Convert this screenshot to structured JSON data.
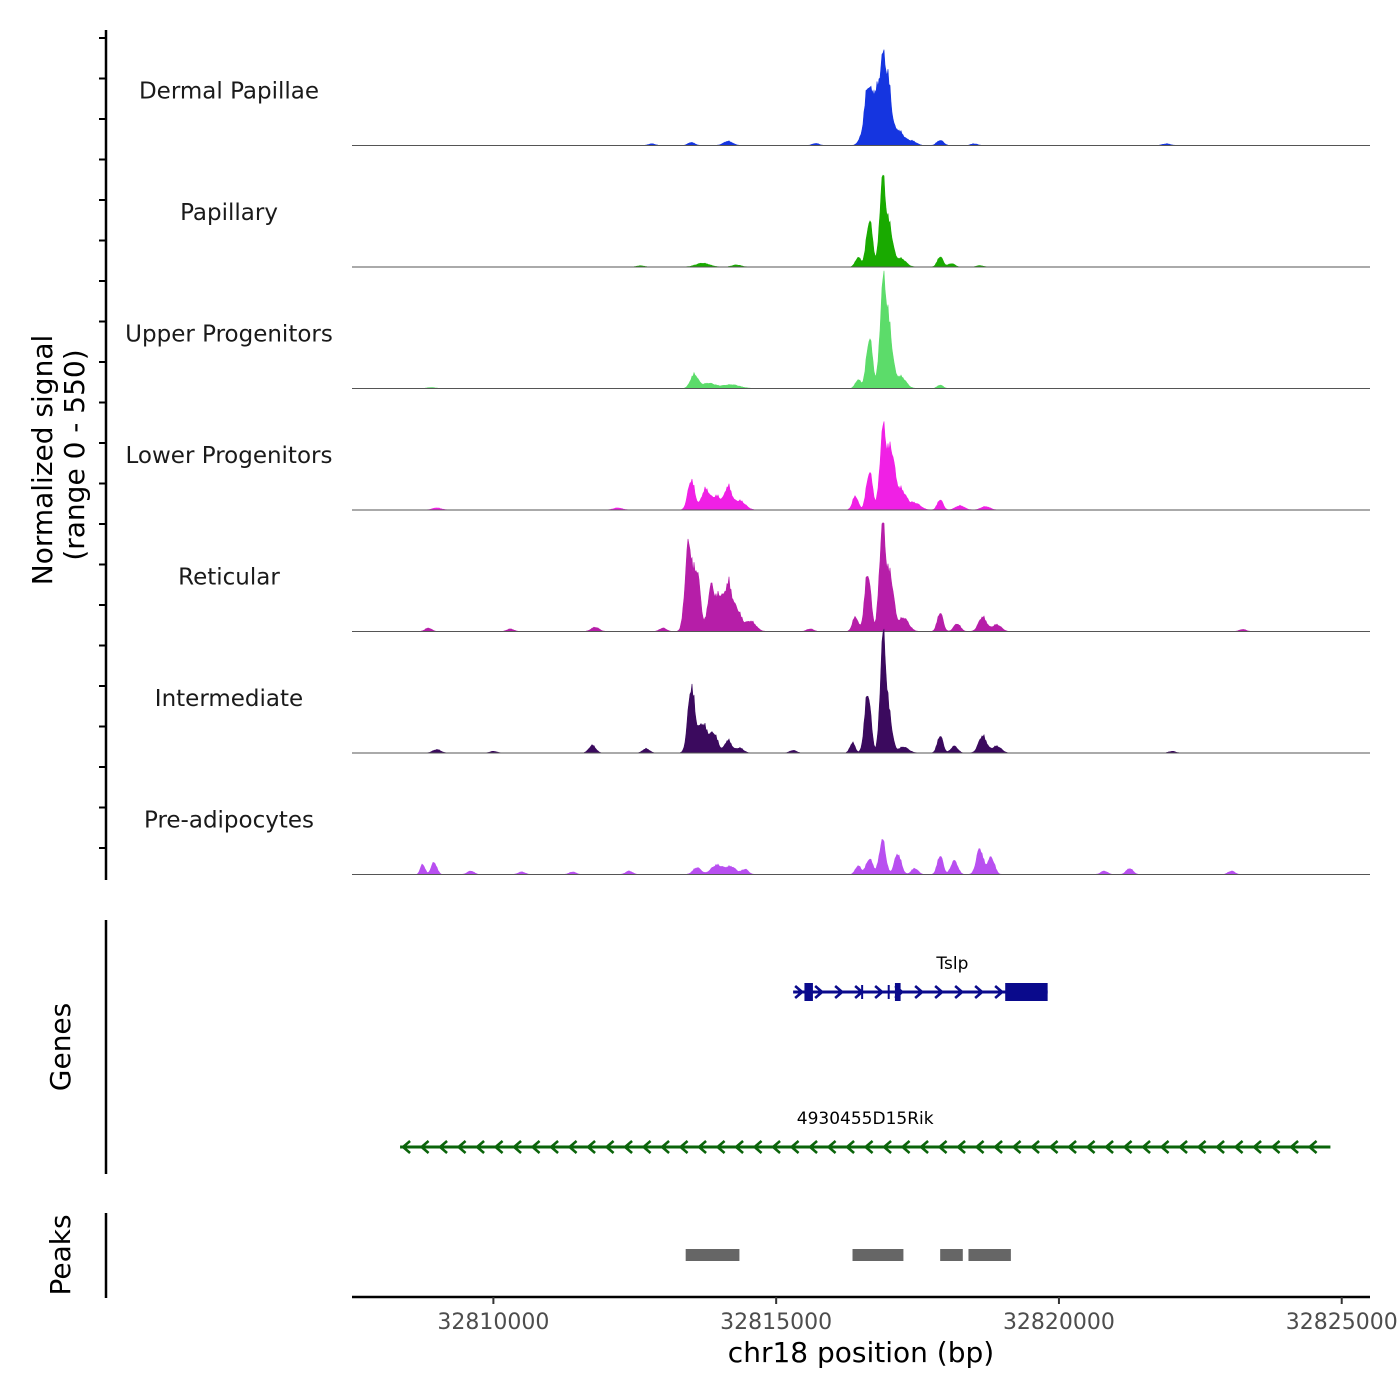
{
  "chart_data": {
    "type": "area",
    "title": "",
    "xlabel": "chr18 position (bp)",
    "ylabel_line1": "Normalized signal",
    "ylabel_line2": "(range 0 - 550)",
    "ylim": [
      0,
      550
    ],
    "xlim": [
      32807500,
      32825500
    ],
    "x_ticks": [
      32810000,
      32815000,
      32820000,
      32825000
    ],
    "x_tick_labels": [
      "32810000",
      "32815000",
      "32820000",
      "32825000"
    ],
    "series": [
      {
        "name": "Dermal Papillae",
        "color": "#1535e0",
        "regions": [
          {
            "c": 32816480,
            "w": 50,
            "h": 25
          },
          {
            "c": 32816620,
            "w": 60,
            "h": 330
          },
          {
            "c": 32816760,
            "w": 60,
            "h": 285
          },
          {
            "c": 32816880,
            "w": 50,
            "h": 420
          },
          {
            "c": 32816980,
            "w": 55,
            "h": 330
          },
          {
            "c": 32817150,
            "w": 100,
            "h": 90
          },
          {
            "c": 32817400,
            "w": 80,
            "h": 25
          },
          {
            "c": 32817900,
            "w": 60,
            "h": 30
          },
          {
            "c": 32814150,
            "w": 80,
            "h": 25
          },
          {
            "c": 32813500,
            "w": 60,
            "h": 18
          },
          {
            "c": 32815700,
            "w": 60,
            "h": 12
          },
          {
            "c": 32812800,
            "w": 60,
            "h": 10
          },
          {
            "c": 32818500,
            "w": 60,
            "h": 10
          },
          {
            "c": 32821900,
            "w": 70,
            "h": 10
          }
        ]
      },
      {
        "name": "Papillary",
        "color": "#19aa00",
        "regions": [
          {
            "c": 32816450,
            "w": 50,
            "h": 55
          },
          {
            "c": 32816650,
            "w": 55,
            "h": 270
          },
          {
            "c": 32816880,
            "w": 50,
            "h": 490
          },
          {
            "c": 32817000,
            "w": 60,
            "h": 230
          },
          {
            "c": 32817200,
            "w": 90,
            "h": 50
          },
          {
            "c": 32817900,
            "w": 50,
            "h": 60
          },
          {
            "c": 32818100,
            "w": 60,
            "h": 20
          },
          {
            "c": 32813700,
            "w": 120,
            "h": 22
          },
          {
            "c": 32814300,
            "w": 80,
            "h": 12
          },
          {
            "c": 32818600,
            "w": 60,
            "h": 8
          },
          {
            "c": 32812600,
            "w": 70,
            "h": 7
          }
        ]
      },
      {
        "name": "Upper Progenitors",
        "color": "#5cdc6a",
        "regions": [
          {
            "c": 32813550,
            "w": 65,
            "h": 80
          },
          {
            "c": 32813800,
            "w": 120,
            "h": 30
          },
          {
            "c": 32814200,
            "w": 150,
            "h": 22
          },
          {
            "c": 32816450,
            "w": 50,
            "h": 50
          },
          {
            "c": 32816650,
            "w": 55,
            "h": 290
          },
          {
            "c": 32816890,
            "w": 55,
            "h": 570
          },
          {
            "c": 32817000,
            "w": 60,
            "h": 310
          },
          {
            "c": 32817200,
            "w": 90,
            "h": 70
          },
          {
            "c": 32817900,
            "w": 50,
            "h": 20
          },
          {
            "c": 32808900,
            "w": 70,
            "h": 6
          }
        ]
      },
      {
        "name": "Lower Progenitors",
        "color": "#f020e5",
        "regions": [
          {
            "c": 32813500,
            "w": 60,
            "h": 175
          },
          {
            "c": 32813750,
            "w": 70,
            "h": 120
          },
          {
            "c": 32813950,
            "w": 80,
            "h": 80
          },
          {
            "c": 32814150,
            "w": 60,
            "h": 130
          },
          {
            "c": 32814350,
            "w": 100,
            "h": 55
          },
          {
            "c": 32816400,
            "w": 50,
            "h": 80
          },
          {
            "c": 32816650,
            "w": 55,
            "h": 220
          },
          {
            "c": 32816890,
            "w": 55,
            "h": 460
          },
          {
            "c": 32817030,
            "w": 60,
            "h": 330
          },
          {
            "c": 32817200,
            "w": 90,
            "h": 120
          },
          {
            "c": 32817450,
            "w": 100,
            "h": 40
          },
          {
            "c": 32817900,
            "w": 50,
            "h": 60
          },
          {
            "c": 32818250,
            "w": 80,
            "h": 25
          },
          {
            "c": 32818700,
            "w": 80,
            "h": 20
          },
          {
            "c": 32809000,
            "w": 80,
            "h": 12
          },
          {
            "c": 32812200,
            "w": 80,
            "h": 12
          }
        ]
      },
      {
        "name": "Reticular",
        "color": "#b61ea8",
        "regions": [
          {
            "c": 32813450,
            "w": 60,
            "h": 500
          },
          {
            "c": 32813600,
            "w": 60,
            "h": 340
          },
          {
            "c": 32813850,
            "w": 60,
            "h": 260
          },
          {
            "c": 32814000,
            "w": 60,
            "h": 200
          },
          {
            "c": 32814150,
            "w": 60,
            "h": 260
          },
          {
            "c": 32814300,
            "w": 80,
            "h": 130
          },
          {
            "c": 32814550,
            "w": 90,
            "h": 60
          },
          {
            "c": 32816400,
            "w": 50,
            "h": 85
          },
          {
            "c": 32816620,
            "w": 55,
            "h": 340
          },
          {
            "c": 32816880,
            "w": 55,
            "h": 600
          },
          {
            "c": 32817020,
            "w": 60,
            "h": 310
          },
          {
            "c": 32817250,
            "w": 90,
            "h": 80
          },
          {
            "c": 32817900,
            "w": 50,
            "h": 110
          },
          {
            "c": 32818200,
            "w": 60,
            "h": 45
          },
          {
            "c": 32818650,
            "w": 70,
            "h": 85
          },
          {
            "c": 32818900,
            "w": 80,
            "h": 40
          },
          {
            "c": 32808850,
            "w": 60,
            "h": 20
          },
          {
            "c": 32811800,
            "w": 70,
            "h": 25
          },
          {
            "c": 32813000,
            "w": 60,
            "h": 20
          },
          {
            "c": 32815600,
            "w": 60,
            "h": 15
          },
          {
            "c": 32823250,
            "w": 60,
            "h": 12
          },
          {
            "c": 32810300,
            "w": 60,
            "h": 15
          }
        ]
      },
      {
        "name": "Intermediate",
        "color": "#3b0a5e",
        "regions": [
          {
            "c": 32813500,
            "w": 60,
            "h": 380
          },
          {
            "c": 32813700,
            "w": 80,
            "h": 170
          },
          {
            "c": 32813900,
            "w": 70,
            "h": 110
          },
          {
            "c": 32814150,
            "w": 60,
            "h": 75
          },
          {
            "c": 32814350,
            "w": 70,
            "h": 30
          },
          {
            "c": 32816350,
            "w": 45,
            "h": 60
          },
          {
            "c": 32816620,
            "w": 55,
            "h": 350
          },
          {
            "c": 32816890,
            "w": 50,
            "h": 660
          },
          {
            "c": 32817000,
            "w": 55,
            "h": 200
          },
          {
            "c": 32817250,
            "w": 90,
            "h": 35
          },
          {
            "c": 32817900,
            "w": 50,
            "h": 100
          },
          {
            "c": 32818150,
            "w": 60,
            "h": 40
          },
          {
            "c": 32818650,
            "w": 70,
            "h": 100
          },
          {
            "c": 32818900,
            "w": 80,
            "h": 40
          },
          {
            "c": 32811750,
            "w": 60,
            "h": 45
          },
          {
            "c": 32812700,
            "w": 60,
            "h": 25
          },
          {
            "c": 32809000,
            "w": 70,
            "h": 20
          },
          {
            "c": 32810000,
            "w": 60,
            "h": 10
          },
          {
            "c": 32815300,
            "w": 60,
            "h": 15
          },
          {
            "c": 32822000,
            "w": 60,
            "h": 10
          }
        ]
      },
      {
        "name": "Pre-adipocytes",
        "color": "#b84ff0",
        "regions": [
          {
            "c": 32808750,
            "w": 40,
            "h": 60
          },
          {
            "c": 32808950,
            "w": 50,
            "h": 70
          },
          {
            "c": 32809600,
            "w": 60,
            "h": 20
          },
          {
            "c": 32810500,
            "w": 60,
            "h": 15
          },
          {
            "c": 32811400,
            "w": 60,
            "h": 15
          },
          {
            "c": 32812400,
            "w": 60,
            "h": 20
          },
          {
            "c": 32813600,
            "w": 70,
            "h": 40
          },
          {
            "c": 32813950,
            "w": 100,
            "h": 55
          },
          {
            "c": 32814200,
            "w": 90,
            "h": 45
          },
          {
            "c": 32814450,
            "w": 60,
            "h": 30
          },
          {
            "c": 32816450,
            "w": 50,
            "h": 50
          },
          {
            "c": 32816650,
            "w": 60,
            "h": 90
          },
          {
            "c": 32816880,
            "w": 55,
            "h": 200
          },
          {
            "c": 32817150,
            "w": 60,
            "h": 120
          },
          {
            "c": 32817450,
            "w": 60,
            "h": 35
          },
          {
            "c": 32817900,
            "w": 50,
            "h": 110
          },
          {
            "c": 32818150,
            "w": 60,
            "h": 80
          },
          {
            "c": 32818600,
            "w": 60,
            "h": 150
          },
          {
            "c": 32818800,
            "w": 60,
            "h": 100
          },
          {
            "c": 32820800,
            "w": 60,
            "h": 20
          },
          {
            "c": 32821250,
            "w": 60,
            "h": 35
          },
          {
            "c": 32823050,
            "w": 60,
            "h": 20
          }
        ]
      }
    ],
    "genes_track_label": "Genes",
    "genes": [
      {
        "name": "Tslp",
        "start": 32815300,
        "end": 32819800,
        "strand": "+",
        "color": "#0a0a8c",
        "exons": [
          [
            32815500,
            32815650
          ],
          [
            32817100,
            32817200
          ],
          [
            32819050,
            32819800
          ]
        ],
        "small_exon_marks": [
          32816520,
          32816990
        ]
      },
      {
        "name": "4930455D15Rik",
        "start": 32808350,
        "end": 32824800,
        "strand": "-",
        "color": "#0a640a",
        "exons": []
      }
    ],
    "peaks_track_label": "Peaks",
    "peaks": [
      {
        "start": 32813400,
        "end": 32814350
      },
      {
        "start": 32816350,
        "end": 32817250
      },
      {
        "start": 32817900,
        "end": 32818300
      },
      {
        "start": 32818400,
        "end": 32819150
      }
    ],
    "peak_color": "#666666"
  }
}
